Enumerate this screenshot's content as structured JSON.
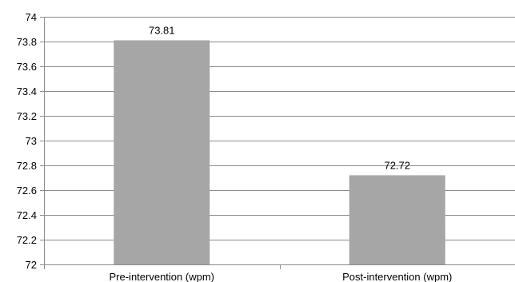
{
  "chart_data": {
    "type": "bar",
    "categories": [
      "Pre-intervention (wpm)",
      "Post-intervention (wpm)"
    ],
    "values": [
      73.81,
      72.72
    ],
    "data_labels": [
      "73.81",
      "72.72"
    ],
    "y_ticks": [
      "72",
      "72.2",
      "72.4",
      "72.6",
      "72.8",
      "73",
      "73.2",
      "73.4",
      "73.6",
      "73.8",
      "74"
    ],
    "ylim": [
      72,
      74
    ],
    "grid": true,
    "bar_color": "#a6a6a6",
    "grid_color": "#8c8c8c"
  }
}
